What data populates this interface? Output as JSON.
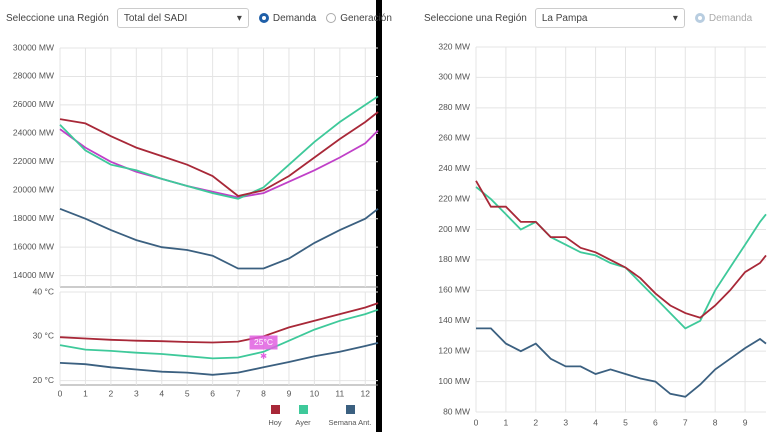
{
  "controls": {
    "left": {
      "region_label": "Seleccione una Región",
      "region": "Total del SADI",
      "options": [
        "Demanda",
        "Generación"
      ]
    },
    "right": {
      "region_label": "Seleccione una Región",
      "region": "La Pampa",
      "options": [
        "Demanda"
      ]
    }
  },
  "chart_data": [
    {
      "type": "line",
      "x": [
        0,
        1,
        2,
        3,
        4,
        5,
        6,
        7,
        8,
        9,
        10,
        11,
        12,
        12.5
      ],
      "xlim": [
        0,
        12.5
      ],
      "xticks": [
        0,
        1,
        2,
        3,
        4,
        5,
        6,
        7,
        8,
        9,
        10,
        11,
        12
      ],
      "ylim": [
        13200,
        30000
      ],
      "yticks": [
        {
          "value": 14000,
          "label": "14000 MW"
        },
        {
          "value": 16000,
          "label": "16000 MW"
        },
        {
          "value": 18000,
          "label": "18000 MW"
        },
        {
          "value": 20000,
          "label": "20000 MW"
        },
        {
          "value": 22000,
          "label": "22000 MW"
        },
        {
          "value": 24000,
          "label": "24000 MW"
        },
        {
          "value": 26000,
          "label": "26000 MW"
        },
        {
          "value": 28000,
          "label": "28000 MW"
        },
        {
          "value": 30000,
          "label": "30000 MW"
        }
      ],
      "grid": true,
      "series": [
        {
          "color": "#3b6080",
          "values": [
            18700,
            18000,
            17200,
            16500,
            16000,
            15800,
            15400,
            14500,
            14500,
            15200,
            16300,
            17200,
            18000,
            18700
          ]
        },
        {
          "color": "#c040c8",
          "values": [
            24300,
            23000,
            22000,
            21300,
            20800,
            20300,
            19900,
            19500,
            19800,
            20600,
            21400,
            22300,
            23300,
            24200
          ]
        },
        {
          "color": "#3ec99a",
          "values": [
            24600,
            22800,
            21800,
            21400,
            20800,
            20300,
            19800,
            19400,
            20200,
            21800,
            23400,
            24800,
            26000,
            26600
          ]
        },
        {
          "color": "#a82838",
          "values": [
            25000,
            24700,
            23800,
            23000,
            22400,
            21800,
            21000,
            19600,
            20000,
            21000,
            22300,
            23600,
            24800,
            25500
          ]
        }
      ]
    },
    {
      "type": "line",
      "x": [
        0,
        1,
        2,
        3,
        4,
        5,
        6,
        7,
        8,
        9,
        10,
        11,
        12,
        12.5
      ],
      "xlim": [
        0,
        12.5
      ],
      "xticks": [
        0,
        1,
        2,
        3,
        4,
        5,
        6,
        7,
        8,
        9,
        10,
        11,
        12
      ],
      "ylim": [
        19,
        40
      ],
      "yticks": [
        {
          "value": 20,
          "label": "20 °C"
        },
        {
          "value": 30,
          "label": "30 °C"
        },
        {
          "value": 40,
          "label": "40 °C"
        }
      ],
      "grid": true,
      "annotation": "25°C",
      "series": [
        {
          "name": "Hoy",
          "color": "#a82838",
          "values": [
            29.8,
            29.5,
            29.2,
            29,
            28.9,
            28.7,
            28.6,
            28.8,
            30,
            32,
            33.5,
            35,
            36.5,
            37.5
          ]
        },
        {
          "name": "Ayer",
          "color": "#3ec99a",
          "values": [
            28,
            27,
            26.7,
            26.3,
            26,
            25.5,
            25,
            25.2,
            26.5,
            29,
            31.5,
            33.5,
            35,
            36
          ]
        },
        {
          "name": "Semana Ant.",
          "color": "#3b6080",
          "values": [
            24,
            23.7,
            23,
            22.5,
            22,
            21.8,
            21.3,
            21.8,
            23,
            24.2,
            25.5,
            26.5,
            27.8,
            28.5
          ]
        }
      ]
    },
    {
      "type": "line",
      "x": [
        0,
        0.5,
        1,
        1.5,
        2,
        2.5,
        3,
        3.5,
        4,
        4.5,
        5,
        5.5,
        6,
        6.5,
        7,
        7.5,
        8,
        8.5,
        9,
        9.5,
        9.7
      ],
      "xlim": [
        0,
        9.7
      ],
      "xticks": [
        0,
        1,
        2,
        3,
        4,
        5,
        6,
        7,
        8,
        9
      ],
      "ylim": [
        80,
        320
      ],
      "yticks": [
        {
          "value": 80,
          "label": "80 MW"
        },
        {
          "value": 100,
          "label": "100 MW"
        },
        {
          "value": 120,
          "label": "120 MW"
        },
        {
          "value": 140,
          "label": "140 MW"
        },
        {
          "value": 160,
          "label": "160 MW"
        },
        {
          "value": 180,
          "label": "180 MW"
        },
        {
          "value": 200,
          "label": "200 MW"
        },
        {
          "value": 220,
          "label": "220 MW"
        },
        {
          "value": 240,
          "label": "240 MW"
        },
        {
          "value": 260,
          "label": "260 MW"
        },
        {
          "value": 280,
          "label": "280 MW"
        },
        {
          "value": 300,
          "label": "300 MW"
        },
        {
          "value": 320,
          "label": "320 MW"
        }
      ],
      "grid": true,
      "series": [
        {
          "color": "#3b6080",
          "values": [
            135,
            135,
            125,
            120,
            125,
            115,
            110,
            110,
            105,
            108,
            105,
            102,
            100,
            92,
            90,
            98,
            108,
            115,
            122,
            128,
            125
          ]
        },
        {
          "color": "#3ec99a",
          "values": [
            228,
            220,
            210,
            200,
            205,
            195,
            190,
            185,
            183,
            178,
            175,
            165,
            155,
            145,
            135,
            140,
            160,
            175,
            190,
            205,
            210
          ]
        },
        {
          "color": "#a82838",
          "values": [
            232,
            215,
            215,
            205,
            205,
            195,
            195,
            188,
            185,
            180,
            175,
            168,
            158,
            150,
            145,
            142,
            150,
            160,
            172,
            178,
            183
          ]
        }
      ]
    }
  ]
}
